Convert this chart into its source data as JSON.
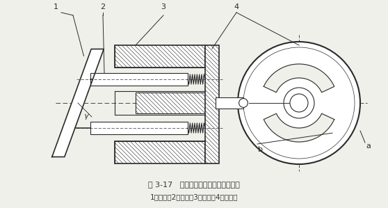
{
  "title_line1": "图 3-17   斜盘式轴向柱塞泵的工作原理",
  "title_line2": "1－斜盘；2－柱塞；3－缸体；4－配流盘",
  "bg_color": "#f0f0eb",
  "line_color": "#2a2a2a",
  "label_1": "1",
  "label_2": "2",
  "label_3": "3",
  "label_4": "4",
  "label_a": "a",
  "label_b": "b",
  "label_gamma": "γ"
}
